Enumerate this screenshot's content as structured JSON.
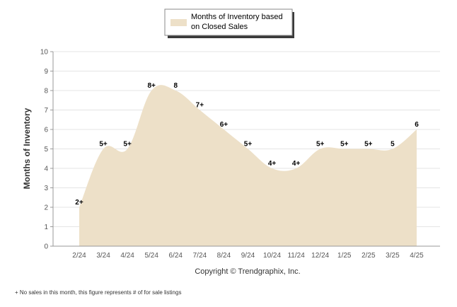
{
  "chart_data": {
    "type": "area",
    "categories": [
      "2/24",
      "3/24",
      "4/24",
      "5/24",
      "6/24",
      "7/24",
      "8/24",
      "9/24",
      "10/24",
      "11/24",
      "12/24",
      "1/25",
      "2/25",
      "3/25",
      "4/25"
    ],
    "series": [
      {
        "name": "Months of Inventory based on Closed Sales",
        "values": [
          2,
          5,
          5,
          8,
          8,
          7,
          6,
          5,
          4,
          4,
          5,
          5,
          5,
          5,
          6
        ],
        "labels": [
          "2+",
          "5+",
          "5+",
          "8+",
          "8",
          "7+",
          "6+",
          "5+",
          "4+",
          "4+",
          "5+",
          "5+",
          "5+",
          "5",
          "6"
        ],
        "color": "#ede0c8"
      }
    ],
    "ylabel": "Months of Inventory",
    "xlabel": "",
    "ylim": [
      0,
      10
    ],
    "yticks": [
      "0",
      "1",
      "2",
      "3",
      "4",
      "5",
      "6",
      "7",
      "8",
      "9",
      "10"
    ],
    "grid": true,
    "legend_position": "top-center"
  },
  "legend": {
    "line1": "Months of Inventory based",
    "line2": "on Closed Sales"
  },
  "copyright": "Copyright © Trendgraphix, Inc.",
  "footnote": "+ No sales in this month, this figure represents # of for sale listings"
}
